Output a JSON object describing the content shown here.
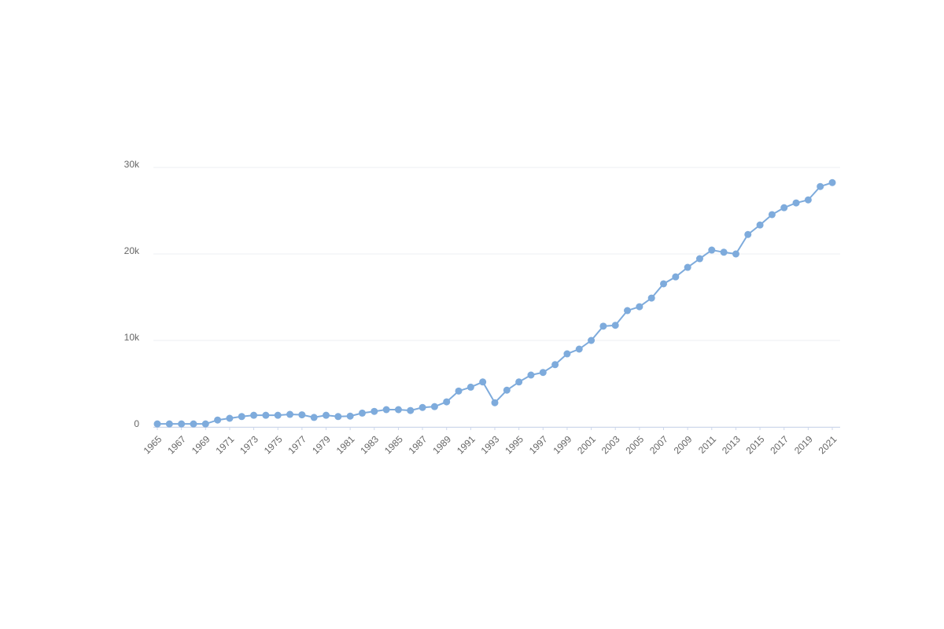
{
  "chart_data": {
    "type": "line",
    "x": [
      1965,
      1966,
      1967,
      1968,
      1969,
      1970,
      1971,
      1972,
      1973,
      1974,
      1975,
      1976,
      1977,
      1978,
      1979,
      1980,
      1981,
      1982,
      1983,
      1984,
      1985,
      1986,
      1987,
      1988,
      1989,
      1990,
      1991,
      1992,
      1993,
      1994,
      1995,
      1996,
      1997,
      1998,
      1999,
      2000,
      2001,
      2002,
      2003,
      2004,
      2005,
      2006,
      2007,
      2008,
      2009,
      2010,
      2011,
      2012,
      2013,
      2014,
      2015,
      2016,
      2017,
      2018,
      2019,
      2020,
      2021
    ],
    "series": [
      {
        "color": "#7eabdc",
        "values": [
          350,
          350,
          350,
          350,
          350,
          800,
          1000,
          1200,
          1350,
          1350,
          1350,
          1450,
          1400,
          1100,
          1350,
          1200,
          1250,
          1600,
          1800,
          2000,
          2000,
          1900,
          2250,
          2350,
          2900,
          4150,
          4600,
          5200,
          2800,
          4250,
          5200,
          6000,
          6300,
          7200,
          8450,
          9000,
          10000,
          11650,
          11750,
          13450,
          13900,
          14900,
          16550,
          17350,
          18450,
          19450,
          20450,
          20200,
          20000,
          22250,
          23350,
          24550,
          25350,
          25900,
          26250,
          27800,
          28250
        ]
      }
    ],
    "xlim": [
      1965,
      2021
    ],
    "xticks": [
      1965,
      1967,
      1969,
      1971,
      1973,
      1975,
      1977,
      1979,
      1981,
      1983,
      1985,
      1987,
      1989,
      1991,
      1993,
      1995,
      1997,
      1999,
      2001,
      2003,
      2005,
      2007,
      2009,
      2011,
      2013,
      2015,
      2017,
      2019,
      2021
    ],
    "ylim": [
      0,
      30000
    ],
    "yticks": [
      0,
      {
        "value": 10000,
        "label": "10k"
      },
      {
        "value": 20000,
        "label": "20k"
      },
      {
        "value": 30000,
        "label": "30k"
      }
    ],
    "grid": true
  }
}
